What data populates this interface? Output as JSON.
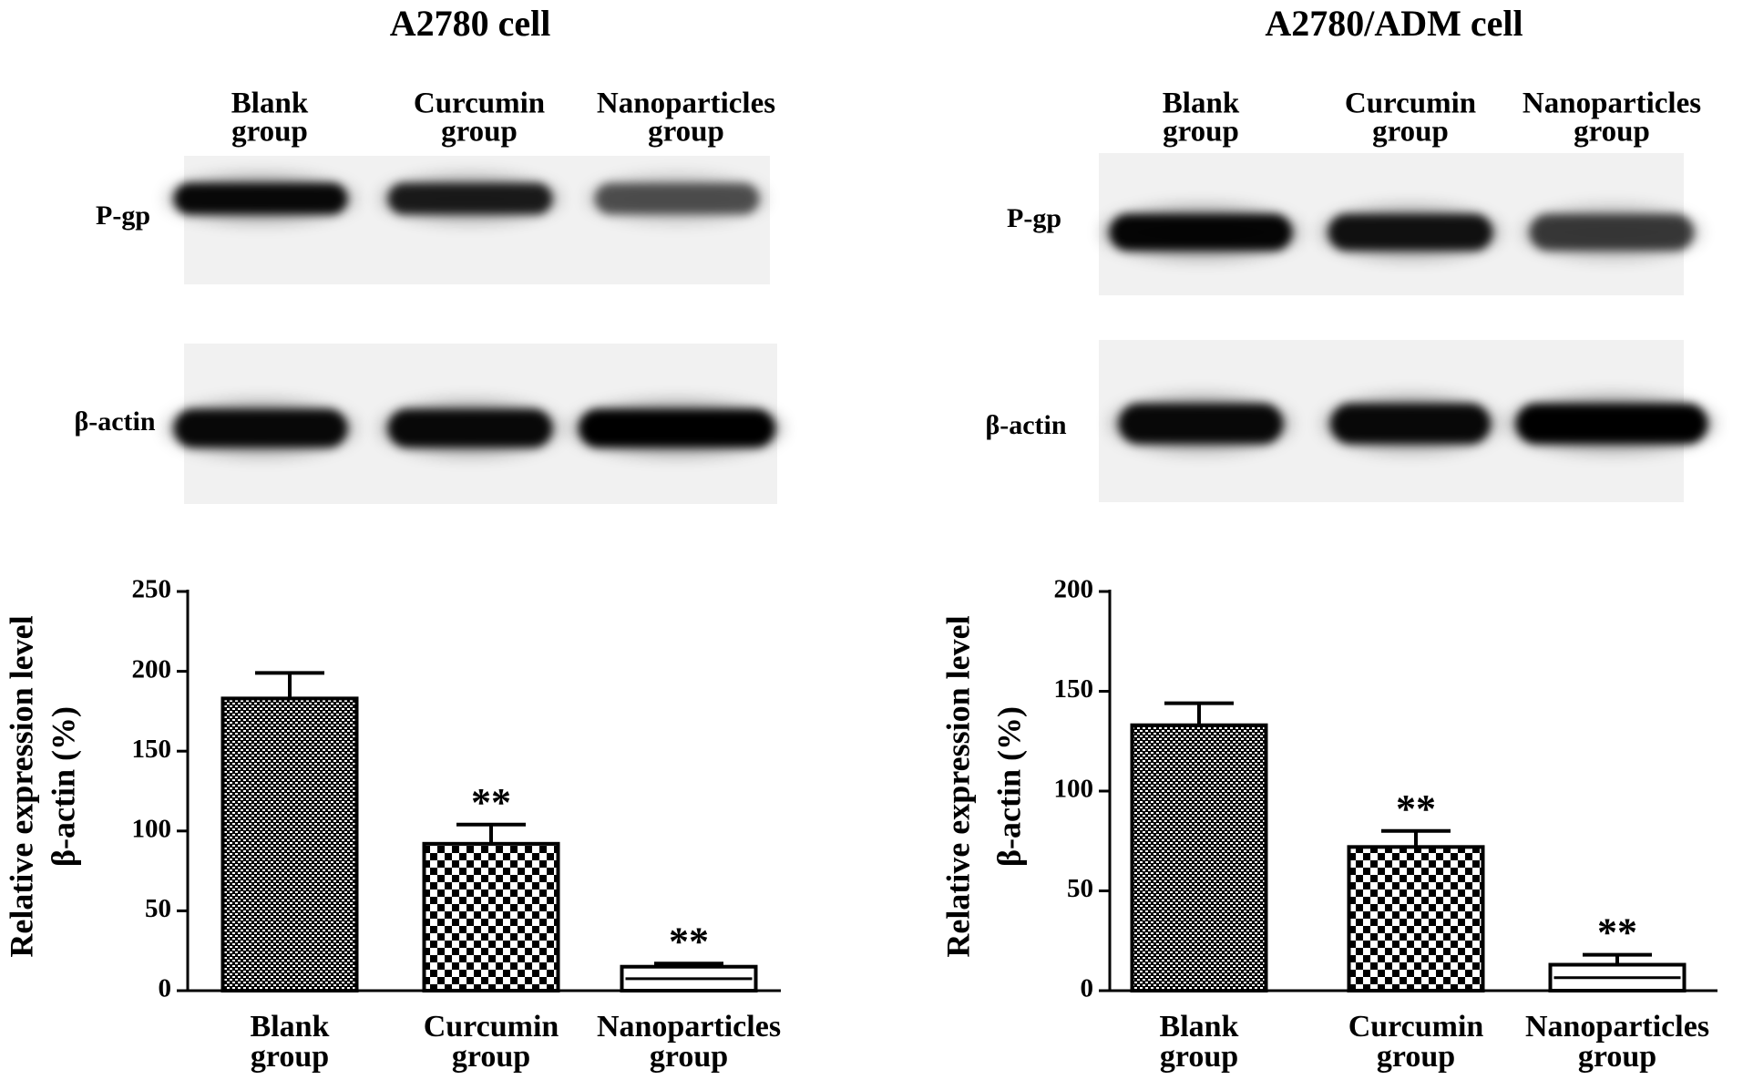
{
  "chart_data": [
    {
      "type": "bar",
      "title": "A2780 cell",
      "blot_rows": [
        "P-gp",
        "β-actin"
      ],
      "ylabel": [
        "Relative expression level",
        "β-actin (%)"
      ],
      "categories": [
        [
          "Blank",
          "group"
        ],
        [
          "Curcumin",
          "group"
        ],
        [
          "Nanoparticles",
          "group"
        ]
      ],
      "values": [
        183,
        92,
        15
      ],
      "errors": [
        16,
        12,
        2
      ],
      "annotations": [
        null,
        "**",
        "**"
      ],
      "ylim": [
        0,
        250
      ],
      "yticks": [
        0,
        50,
        100,
        150,
        200,
        250
      ]
    },
    {
      "type": "bar",
      "title": "A2780/ADM cell",
      "blot_rows": [
        "P-gp",
        "β-actin"
      ],
      "ylabel": [
        "Relative expression level",
        "β-actin (%)"
      ],
      "categories": [
        [
          "Blank",
          "group"
        ],
        [
          "Curcumin",
          "group"
        ],
        [
          "Nanoparticles",
          "group"
        ]
      ],
      "values": [
        133,
        72,
        13
      ],
      "errors": [
        11,
        8,
        5
      ],
      "annotations": [
        null,
        "**",
        "**"
      ],
      "ylim": [
        0,
        200
      ],
      "yticks": [
        0,
        50,
        100,
        150,
        200
      ]
    }
  ]
}
